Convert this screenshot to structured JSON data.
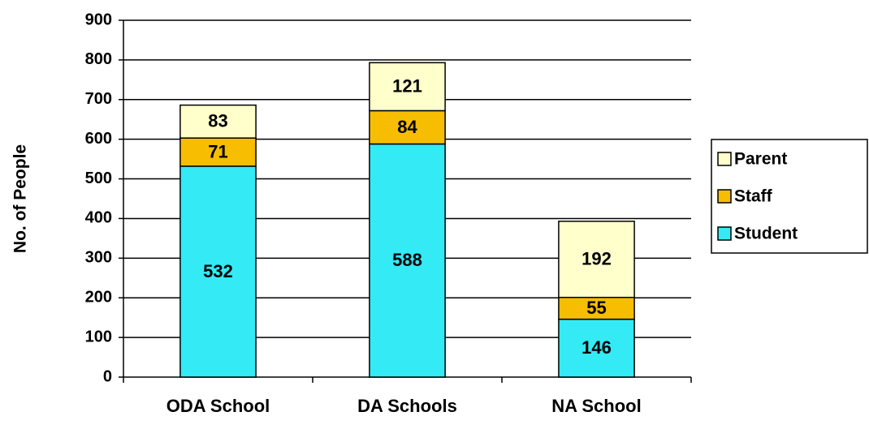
{
  "chart_data": {
    "type": "stacked_bar",
    "categories": [
      "ODA School",
      "DA Schools",
      "NA School"
    ],
    "series": [
      {
        "name": "Student",
        "color": "#33eaf5",
        "values": [
          532,
          588,
          146
        ]
      },
      {
        "name": "Staff",
        "color": "#f7bd00",
        "values": [
          71,
          84,
          55
        ]
      },
      {
        "name": "Parent",
        "color": "#ffffcc",
        "values": [
          83,
          121,
          192
        ]
      }
    ],
    "y_label": "No. of People",
    "ylim": [
      0,
      900
    ],
    "yticks": [
      0,
      100,
      200,
      300,
      400,
      500,
      600,
      700,
      800,
      900
    ],
    "grid": true,
    "legend": "right"
  }
}
